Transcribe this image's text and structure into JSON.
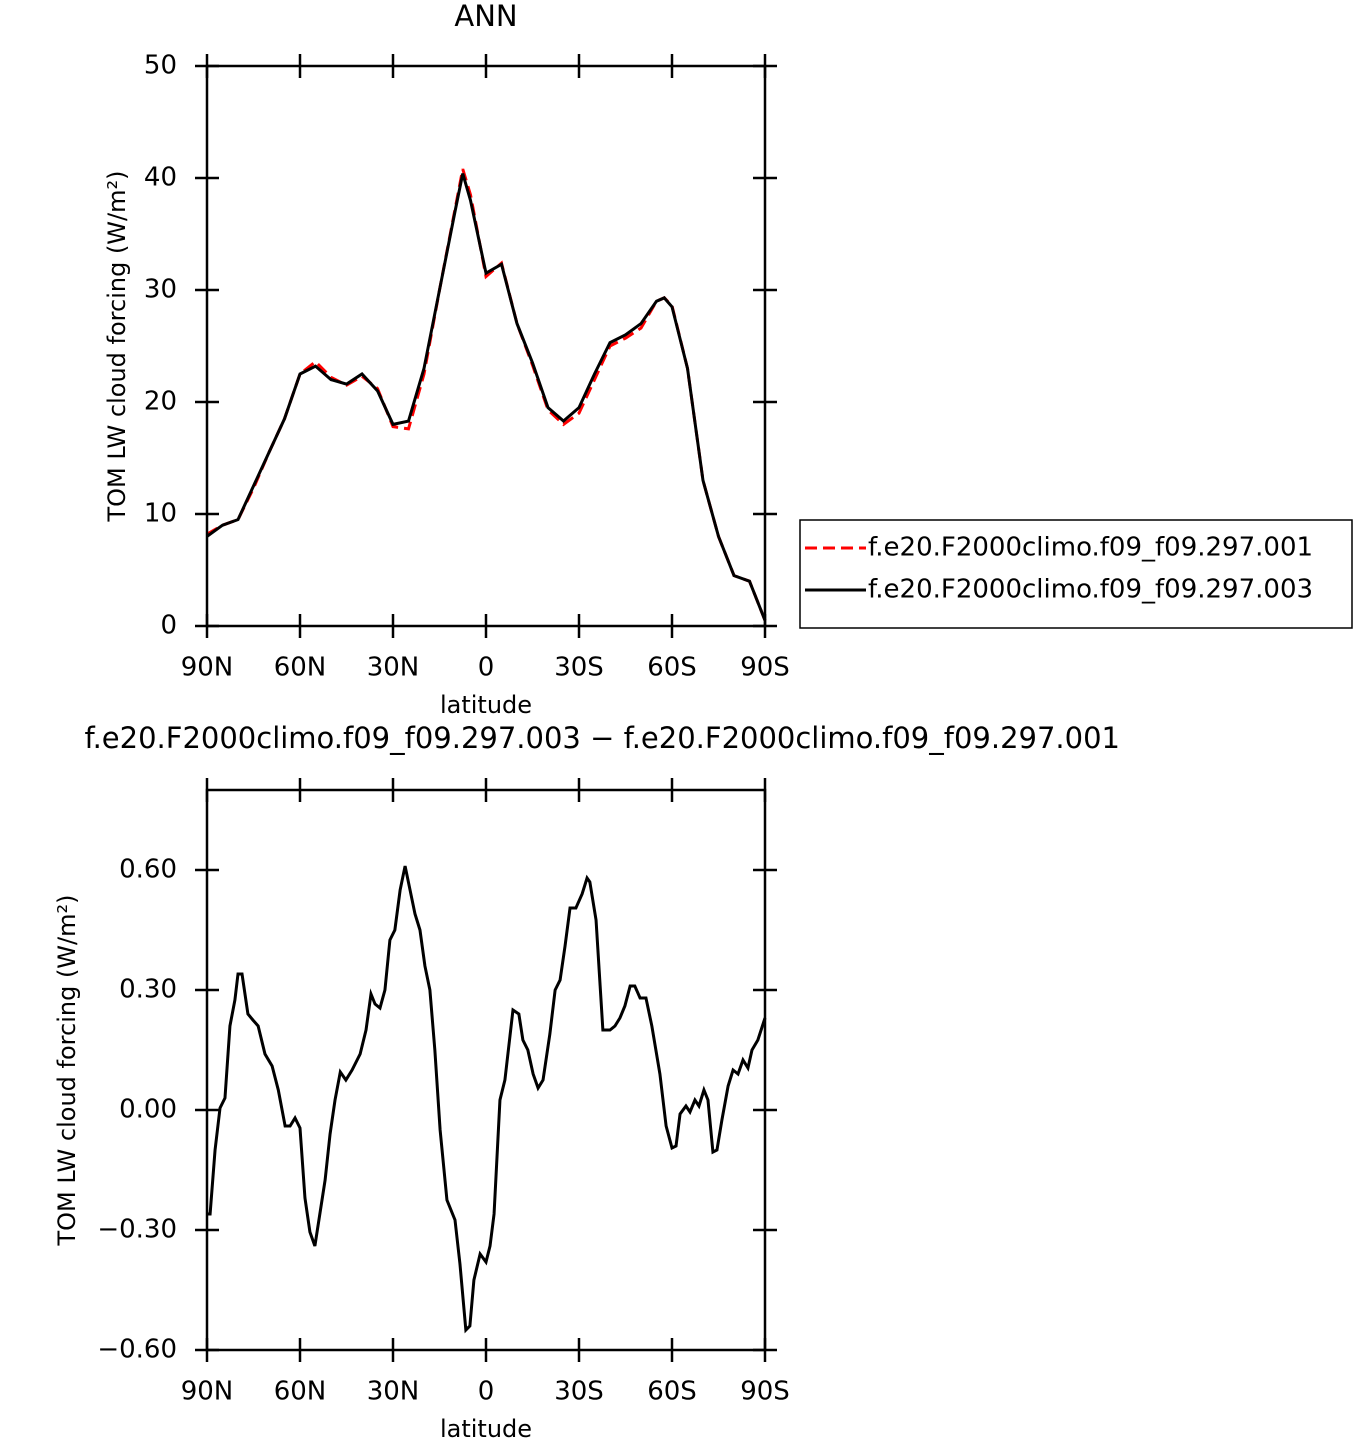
{
  "chart_data": [
    {
      "type": "line",
      "title": "ANN",
      "xlabel": "latitude",
      "ylabel": "TOM LW cloud forcing (W/m²)",
      "x": [
        90,
        85,
        80,
        75,
        70,
        65,
        60,
        55,
        50,
        45,
        40,
        35,
        30,
        25,
        20,
        15,
        10,
        7.5,
        5,
        0,
        -5,
        -10,
        -15,
        -20,
        -25,
        -30,
        -35,
        -40,
        -45,
        -50,
        -55,
        -57.5,
        -60,
        -65,
        -70,
        -75,
        -80,
        -85,
        -90
      ],
      "xlim": [
        90,
        -90
      ],
      "xticks": [
        {
          "value": 90,
          "label": "90N"
        },
        {
          "value": 60,
          "label": "60N"
        },
        {
          "value": 30,
          "label": "30N"
        },
        0,
        {
          "value": -30,
          "label": "30S"
        },
        {
          "value": -60,
          "label": "60S"
        },
        {
          "value": -90,
          "label": "90S"
        }
      ],
      "ylim": [
        0,
        50
      ],
      "yticks": [
        0,
        10,
        20,
        30,
        40,
        50
      ],
      "legend": "right",
      "series": [
        {
          "name": "f.e20.F2000climo.f09_f09.297.001",
          "color": "#ff0000",
          "style": "dashed",
          "values": [
            8.2,
            9.0,
            9.5,
            12.3,
            15.5,
            18.5,
            22.5,
            23.6,
            22.2,
            21.5,
            22.3,
            21.2,
            17.8,
            17.6,
            22.5,
            30,
            37.2,
            40.8,
            38.5,
            31.2,
            32.4,
            27,
            23.3,
            19.3,
            18.0,
            19.0,
            22.0,
            25.0,
            25.7,
            26.6,
            29,
            29.3,
            28.6,
            23,
            13,
            8,
            4.5,
            4,
            0.5
          ]
        },
        {
          "name": "f.e20.F2000climo.f09_f09.297.003",
          "color": "#000000",
          "style": "solid",
          "values": [
            8.0,
            9.0,
            9.5,
            12.5,
            15.5,
            18.5,
            22.5,
            23.2,
            22.0,
            21.6,
            22.5,
            21.0,
            18.0,
            18.3,
            23,
            30,
            37,
            40.4,
            38.0,
            31.5,
            32.3,
            27,
            23.5,
            19.5,
            18.3,
            19.5,
            22.5,
            25.3,
            26,
            27,
            29,
            29.3,
            28.5,
            23,
            13,
            8,
            4.5,
            4,
            0.5
          ]
        }
      ]
    },
    {
      "type": "line",
      "title": "f.e20.F2000climo.f09_f09.297.003 − f.e20.F2000climo.f09_f09.297.001",
      "xlabel": "latitude",
      "ylabel": "TOM LW cloud forcing (W/m²)",
      "x": [
        90,
        89,
        87.4,
        85.8,
        84.2,
        82.6,
        81,
        80,
        78.7,
        76.8,
        75.2,
        73.5,
        71.3,
        69,
        67,
        64.8,
        63.2,
        61.6,
        60,
        58.4,
        56.8,
        55.2,
        51.9,
        50.3,
        48.7,
        47,
        45.2,
        43.2,
        40.6,
        38.7,
        37.1,
        35.8,
        34.2,
        32.6,
        31,
        29.4,
        27.7,
        26.1,
        24.5,
        22.9,
        21.3,
        19.7,
        18.1,
        16.5,
        14.8,
        12.6,
        10,
        8.4,
        6.5,
        5.2,
        3.9,
        1.9,
        0,
        -1.3,
        -2.6,
        -4.5,
        -6.1,
        -8.7,
        -10.6,
        -11.9,
        -13.5,
        -15.2,
        -16.8,
        -18.4,
        -20.6,
        -22.3,
        -23.9,
        -25.5,
        -27.1,
        -29,
        -31,
        -32.6,
        -33.5,
        -35.5,
        -37.7,
        -40,
        -41.6,
        -43.2,
        -44.8,
        -46.5,
        -48,
        -49.7,
        -51.6,
        -53.5,
        -56.1,
        -58.1,
        -60,
        -61.3,
        -62.6,
        -64.5,
        -65.8,
        -67.4,
        -68.7,
        -70.3,
        -71.6,
        -73.2,
        -74.5,
        -76.1,
        -78.1,
        -79.7,
        -81.3,
        -82.9,
        -84.5,
        -85.8,
        -87.7,
        -90
      ],
      "values": [
        -0.26,
        -0.26,
        -0.1,
        0.005,
        0.03,
        0.21,
        0.275,
        0.34,
        0.34,
        0.24,
        0.225,
        0.21,
        0.14,
        0.11,
        0.05,
        -0.04,
        -0.04,
        -0.02,
        -0.045,
        -0.22,
        -0.305,
        -0.34,
        -0.175,
        -0.06,
        0.025,
        0.095,
        0.075,
        0.1,
        0.14,
        0.2,
        0.29,
        0.265,
        0.255,
        0.3,
        0.425,
        0.45,
        0.55,
        0.61,
        0.55,
        0.49,
        0.45,
        0.36,
        0.3,
        0.15,
        -0.05,
        -0.225,
        -0.275,
        -0.385,
        -0.55,
        -0.54,
        -0.425,
        -0.36,
        -0.38,
        -0.34,
        -0.26,
        0.025,
        0.075,
        0.25,
        0.24,
        0.175,
        0.15,
        0.09,
        0.055,
        0.075,
        0.19,
        0.3,
        0.325,
        0.41,
        0.505,
        0.505,
        0.54,
        0.58,
        0.57,
        0.475,
        0.2,
        0.2,
        0.21,
        0.23,
        0.26,
        0.31,
        0.31,
        0.28,
        0.28,
        0.21,
        0.09,
        -0.04,
        -0.095,
        -0.09,
        -0.01,
        0.01,
        -0.005,
        0.025,
        0.01,
        0.05,
        0.025,
        -0.105,
        -0.1,
        -0.025,
        0.06,
        0.1,
        0.09,
        0.125,
        0.105,
        0.15,
        0.175,
        0.23
      ],
      "color": "#000000",
      "style": "solid",
      "xlim": [
        90,
        -90
      ],
      "xticks": [
        {
          "value": 90,
          "label": "90N"
        },
        {
          "value": 60,
          "label": "60N"
        },
        {
          "value": 30,
          "label": "30N"
        },
        0,
        {
          "value": -30,
          "label": "30S"
        },
        {
          "value": -60,
          "label": "60S"
        },
        {
          "value": -90,
          "label": "90S"
        }
      ],
      "ylim": [
        -0.6,
        0.8
      ],
      "yticks": [
        {
          "value": -0.6,
          "label": "−0.60"
        },
        {
          "value": -0.3,
          "label": "−0.30"
        },
        {
          "value": 0,
          "label": "0.00"
        },
        {
          "value": 0.3,
          "label": "0.30"
        },
        {
          "value": 0.6,
          "label": "0.60"
        }
      ]
    }
  ]
}
